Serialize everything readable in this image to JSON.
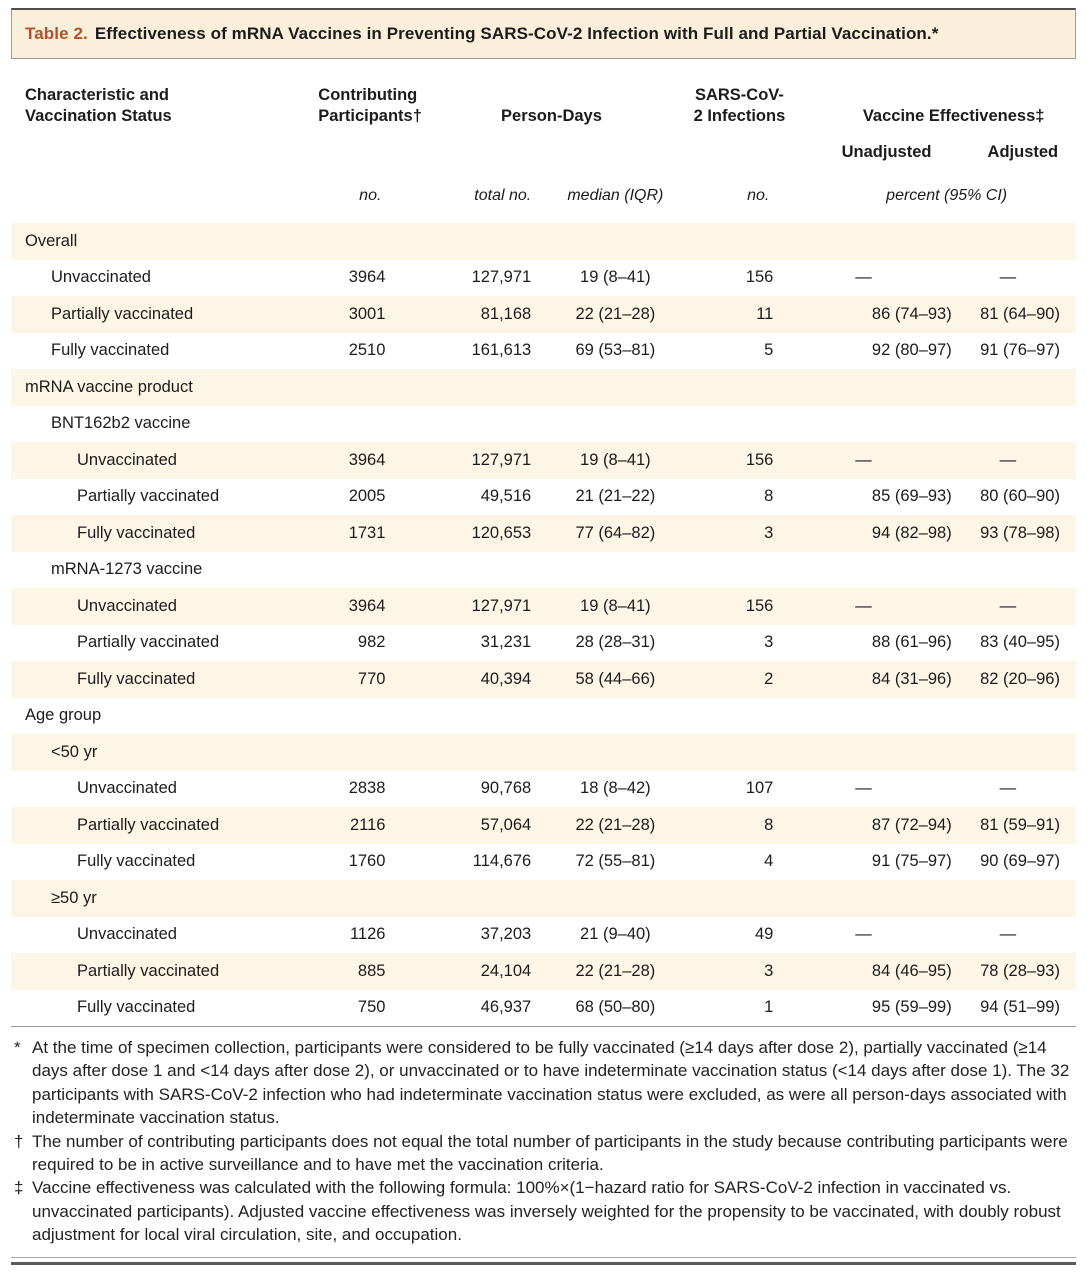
{
  "title": {
    "label": "Table 2.",
    "text": "Effectiveness of mRNA Vaccines in Preventing SARS-CoV-2 Infection with Full and Partial Vaccination.*"
  },
  "header": {
    "characteristic": "Characteristic and Vaccination Status",
    "participants": "Contributing Participants†",
    "person_days": "Person-Days",
    "infections": "SARS-CoV-2 Infections",
    "effectiveness": "Vaccine Effectiveness‡",
    "unadjusted": "Unadjusted",
    "adjusted": "Adjusted",
    "units": {
      "participants": "no.",
      "person_days_total": "total no.",
      "person_days_median": "median (IQR)",
      "infections": "no.",
      "effectiveness": "percent (95% CI)"
    }
  },
  "rows": [
    {
      "label": "Overall",
      "indent": 0,
      "cells": [
        "",
        "",
        "",
        "",
        "",
        ""
      ]
    },
    {
      "label": "Unvaccinated",
      "indent": 1,
      "cells": [
        "3964",
        "127,971",
        "19 (8–41)",
        "156",
        "—",
        "—"
      ]
    },
    {
      "label": "Partially vaccinated",
      "indent": 1,
      "cells": [
        "3001",
        "81,168",
        "22 (21–28)",
        "11",
        "86 (74–93)",
        "81 (64–90)"
      ]
    },
    {
      "label": "Fully vaccinated",
      "indent": 1,
      "cells": [
        "2510",
        "161,613",
        "69 (53–81)",
        "5",
        "92 (80–97)",
        "91 (76–97)"
      ]
    },
    {
      "label": "mRNA vaccine product",
      "indent": 0,
      "cells": [
        "",
        "",
        "",
        "",
        "",
        ""
      ]
    },
    {
      "label": "BNT162b2 vaccine",
      "indent": 1,
      "cells": [
        "",
        "",
        "",
        "",
        "",
        ""
      ]
    },
    {
      "label": "Unvaccinated",
      "indent": 2,
      "cells": [
        "3964",
        "127,971",
        "19 (8–41)",
        "156",
        "—",
        "—"
      ]
    },
    {
      "label": "Partially vaccinated",
      "indent": 2,
      "cells": [
        "2005",
        "49,516",
        "21 (21–22)",
        "8",
        "85 (69–93)",
        "80 (60–90)"
      ]
    },
    {
      "label": "Fully vaccinated",
      "indent": 2,
      "cells": [
        "1731",
        "120,653",
        "77 (64–82)",
        "3",
        "94 (82–98)",
        "93 (78–98)"
      ]
    },
    {
      "label": "mRNA-1273 vaccine",
      "indent": 1,
      "cells": [
        "",
        "",
        "",
        "",
        "",
        ""
      ]
    },
    {
      "label": "Unvaccinated",
      "indent": 2,
      "cells": [
        "3964",
        "127,971",
        "19 (8–41)",
        "156",
        "—",
        "—"
      ]
    },
    {
      "label": "Partially vaccinated",
      "indent": 2,
      "cells": [
        "982",
        "31,231",
        "28 (28–31)",
        "3",
        "88 (61–96)",
        "83 (40–95)"
      ]
    },
    {
      "label": "Fully vaccinated",
      "indent": 2,
      "cells": [
        "770",
        "40,394",
        "58 (44–66)",
        "2",
        "84 (31–96)",
        "82 (20–96)"
      ]
    },
    {
      "label": "Age group",
      "indent": 0,
      "cells": [
        "",
        "",
        "",
        "",
        "",
        ""
      ]
    },
    {
      "label": "<50 yr",
      "indent": 1,
      "cells": [
        "",
        "",
        "",
        "",
        "",
        ""
      ]
    },
    {
      "label": "Unvaccinated",
      "indent": 2,
      "cells": [
        "2838",
        "90,768",
        "18 (8–42)",
        "107",
        "—",
        "—"
      ]
    },
    {
      "label": "Partially vaccinated",
      "indent": 2,
      "cells": [
        "2116",
        "57,064",
        "22 (21–28)",
        "8",
        "87 (72–94)",
        "81 (59–91)"
      ]
    },
    {
      "label": "Fully vaccinated",
      "indent": 2,
      "cells": [
        "1760",
        "114,676",
        "72 (55–81)",
        "4",
        "91 (75–97)",
        "90 (69–97)"
      ]
    },
    {
      "label": "≥50 yr",
      "indent": 1,
      "cells": [
        "",
        "",
        "",
        "",
        "",
        ""
      ]
    },
    {
      "label": "Unvaccinated",
      "indent": 2,
      "cells": [
        "1126",
        "37,203",
        "21 (9–40)",
        "49",
        "—",
        "—"
      ]
    },
    {
      "label": "Partially vaccinated",
      "indent": 2,
      "cells": [
        "885",
        "24,104",
        "22 (21–28)",
        "3",
        "84 (46–95)",
        "78 (28–93)"
      ]
    },
    {
      "label": "Fully vaccinated",
      "indent": 2,
      "cells": [
        "750",
        "46,937",
        "68 (50–80)",
        "1",
        "95 (59–99)",
        "94 (51–99)"
      ]
    }
  ],
  "footnotes": [
    {
      "marker": "*",
      "text": "At the time of specimen collection, participants were considered to be fully vaccinated (≥14 days after dose 2), partially vaccinated (≥14 days after dose 1 and <14 days after dose 2), or unvaccinated or to have indeterminate vaccination status (<14 days after dose 1). The 32 participants with SARS-CoV-2 infection who had indeterminate vaccination status were excluded, as were all person-days associated with indeterminate vaccination status."
    },
    {
      "marker": "†",
      "text": "The number of contributing participants does not equal the total number of participants in the study because contributing participants were required to be in active surveillance and to have met the vaccination criteria."
    },
    {
      "marker": "‡",
      "text": "Vaccine effectiveness was calculated with the following formula: 100%×(1−hazard ratio for SARS-CoV-2 infection in vaccinated vs. unvaccinated participants). Adjusted vaccine effectiveness was inversely weighted for the propensity to be vaccinated, with doubly robust adjustment for local viral circulation, site, and occupation."
    }
  ]
}
